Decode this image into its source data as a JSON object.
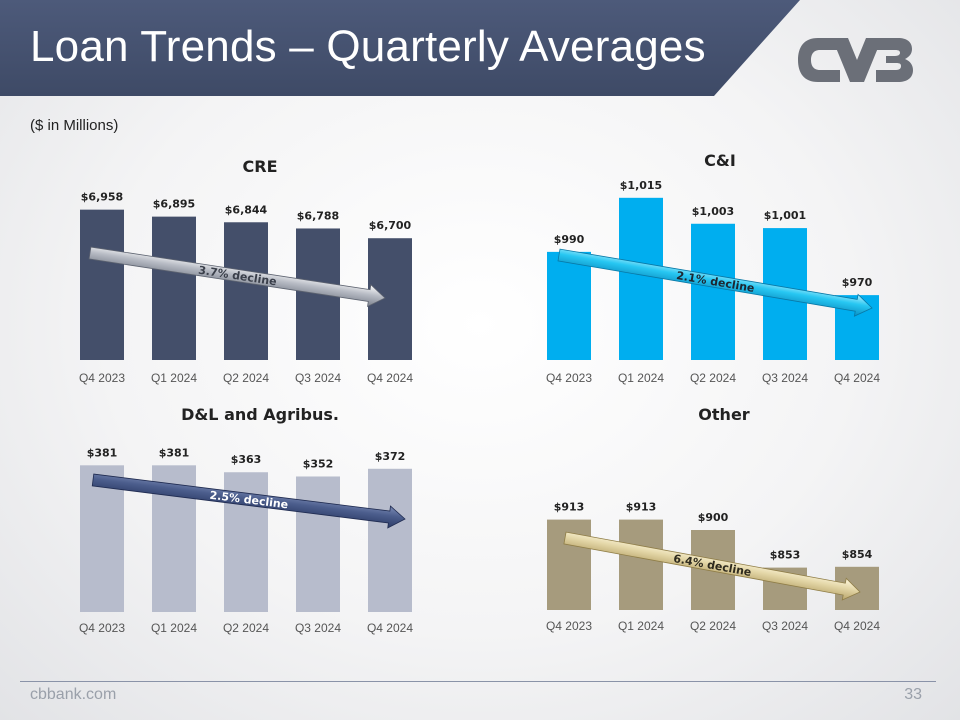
{
  "header": {
    "title": "Loan Trends – Quarterly Averages",
    "subtitle": "($ in Millions)",
    "logo_icon": "cvb-logo-icon"
  },
  "footer": {
    "url": "cbbank.com",
    "page_number": "33"
  },
  "colors": {
    "banner": "#455270",
    "cre": "#444f6a",
    "ci": "#00aeef",
    "dl": "#b7bccc",
    "other": "#a69b7d"
  },
  "chart_data": [
    {
      "id": "cre",
      "type": "bar",
      "title": "CRE",
      "categories": [
        "Q4 2023",
        "Q1 2024",
        "Q2 2024",
        "Q3 2024",
        "Q4 2024"
      ],
      "values": [
        6958,
        6895,
        6844,
        6788,
        6700
      ],
      "labels": [
        "$6,958",
        "$6,895",
        "$6,844",
        "$6,788",
        "$6,700"
      ],
      "ylim": [
        5600,
        7000
      ],
      "color": "#444f6a",
      "annotation": "3.7% decline",
      "arrow_style": "silver"
    },
    {
      "id": "ci",
      "type": "bar",
      "title": "C&I",
      "categories": [
        "Q4 2023",
        "Q1 2024",
        "Q2 2024",
        "Q3 2024",
        "Q4 2024"
      ],
      "values": [
        990,
        1015,
        1003,
        1001,
        970
      ],
      "labels": [
        "$990",
        "$1,015",
        "$1,003",
        "$1,001",
        "$970"
      ],
      "ylim": [
        940,
        1020
      ],
      "color": "#00aeef",
      "annotation": "2.1% decline",
      "arrow_style": "cyan"
    },
    {
      "id": "dl",
      "type": "bar",
      "title": "D&L and Agribus.",
      "categories": [
        "Q4 2023",
        "Q1 2024",
        "Q2 2024",
        "Q3 2024",
        "Q4 2024"
      ],
      "values": [
        381,
        381,
        363,
        352,
        372
      ],
      "labels": [
        "$381",
        "$381",
        "$363",
        "$352",
        "$372"
      ],
      "ylim": [
        0,
        400
      ],
      "color": "#b7bccc",
      "annotation": "2.5% decline",
      "arrow_style": "navy"
    },
    {
      "id": "other",
      "type": "bar",
      "title": "Other",
      "categories": [
        "Q4 2023",
        "Q1 2024",
        "Q2 2024",
        "Q3 2024",
        "Q4 2024"
      ],
      "values": [
        913,
        913,
        900,
        853,
        854
      ],
      "labels": [
        "$913",
        "$913",
        "$900",
        "$853",
        "$854"
      ],
      "ylim": [
        800,
        940
      ],
      "color": "#a69b7d",
      "annotation": "6.4% decline",
      "arrow_style": "gold"
    }
  ]
}
